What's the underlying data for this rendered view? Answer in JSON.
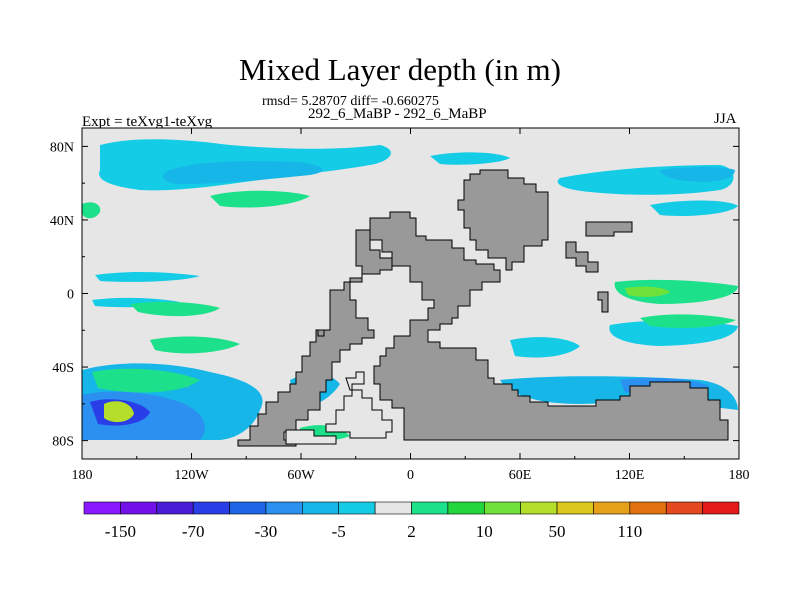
{
  "title": "Mixed Layer depth (in m)",
  "stats": "rmsd= 5.28707 diff= -0.660275",
  "case_label": "292_6_MaBP - 292_6_MaBP",
  "experiment": "Expt = teXvg1-teXvg",
  "season": "JJA",
  "map": {
    "projection": "cylindrical-equidistant",
    "lon_range": [
      -180,
      180
    ],
    "lat_range": [
      -90,
      90
    ],
    "x_ticks": [
      {
        "lon": -180,
        "label": "180"
      },
      {
        "lon": -120,
        "label": "120W"
      },
      {
        "lon": -60,
        "label": "60W"
      },
      {
        "lon": 0,
        "label": "0"
      },
      {
        "lon": 60,
        "label": "60E"
      },
      {
        "lon": 120,
        "label": "120E"
      },
      {
        "lon": 180,
        "label": "180"
      }
    ],
    "y_ticks": [
      {
        "lat": 80,
        "label": "80N"
      },
      {
        "lat": 40,
        "label": "40N"
      },
      {
        "lat": 0,
        "label": "0"
      },
      {
        "lat": -40,
        "label": "40S"
      },
      {
        "lat": -80,
        "label": "80S"
      }
    ],
    "ocean_color": "#e6e6e6",
    "land_color": "#999999",
    "land_outline_color": "#000000"
  },
  "colorbar": {
    "colors": [
      "#8a19ff",
      "#7210e8",
      "#4a1cd6",
      "#2a3ee8",
      "#1f66e6",
      "#2b90f0",
      "#16b7e8",
      "#15cce6",
      "#e6e6e6",
      "#1de08a",
      "#24d63d",
      "#6fe23a",
      "#b5de2a",
      "#dcc81c",
      "#e6a11a",
      "#e2720f",
      "#e3481e",
      "#e51a1a"
    ],
    "labels": [
      "-150",
      "-70",
      "-30",
      "-5",
      "2",
      "10",
      "50",
      "110"
    ]
  }
}
